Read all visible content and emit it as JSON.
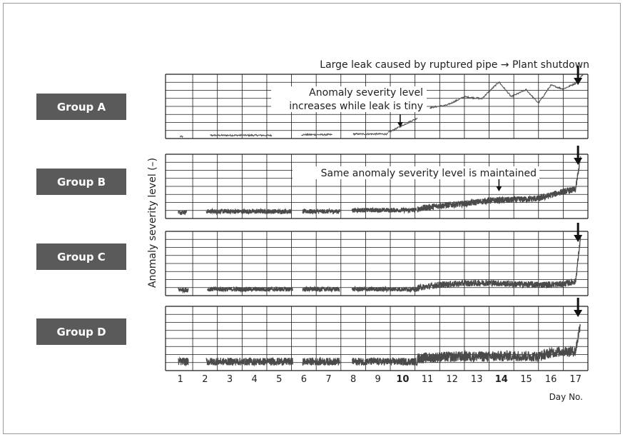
{
  "chart_data": {
    "type": "line",
    "ylabel": "Anomaly severity level (–)",
    "xlabel": "Day No.",
    "x_ticks": [
      "1",
      "2",
      "3",
      "4",
      "5",
      "6",
      "7",
      "8",
      "9",
      "10",
      "11",
      "12",
      "13",
      "14",
      "15",
      "16",
      "17"
    ],
    "bold_ticks": [
      "10",
      "14"
    ],
    "xlim": [
      0.4,
      17.5
    ],
    "ylim": [
      0,
      10
    ],
    "grid": true,
    "panels": [
      {
        "name": "Group A",
        "segments": [
          {
            "start": 0.98,
            "end": 1.1,
            "level": [
              0.3,
              0.3
            ]
          },
          {
            "start": 2.2,
            "end": 4.7,
            "level": [
              0.5,
              0.5
            ]
          },
          {
            "start": 5.9,
            "end": 7.15,
            "level": [
              0.6,
              0.6
            ]
          },
          {
            "start": 8.0,
            "end": 9.4,
            "level": [
              0.7,
              0.7
            ]
          },
          {
            "start": 9.4,
            "end": 10.6,
            "level": [
              0.9,
              3.2
            ]
          },
          {
            "start": 11.1,
            "end": 17.3,
            "profile": [
              [
                11.1,
                4.8
              ],
              [
                11.8,
                5.2
              ],
              [
                12.5,
                6.5
              ],
              [
                13.2,
                6.2
              ],
              [
                13.9,
                8.8
              ],
              [
                14.4,
                6.5
              ],
              [
                15.0,
                7.6
              ],
              [
                15.5,
                5.5
              ],
              [
                16.0,
                8.3
              ],
              [
                16.5,
                7.7
              ],
              [
                17.0,
                8.6
              ],
              [
                17.3,
                10.0
              ]
            ]
          }
        ],
        "noise": 0.12,
        "arrows": [
          9.9,
          17.1
        ]
      },
      {
        "name": "Group B",
        "segments": [
          {
            "start": 0.92,
            "end": 1.25,
            "level": [
              1.0,
              1.0
            ]
          },
          {
            "start": 2.05,
            "end": 5.5,
            "level": [
              1.1,
              1.1
            ]
          },
          {
            "start": 5.95,
            "end": 7.45,
            "level": [
              1.1,
              1.1
            ]
          },
          {
            "start": 7.95,
            "end": 10.55,
            "level": [
              1.3,
              1.3
            ]
          },
          {
            "start": 10.6,
            "end": 17.2,
            "profile": [
              [
                10.6,
                1.5
              ],
              [
                11.5,
                2.0
              ],
              [
                12.5,
                2.3
              ],
              [
                13.5,
                2.8
              ],
              [
                14.5,
                2.9
              ],
              [
                15.5,
                3.1
              ],
              [
                16.5,
                4.2
              ],
              [
                17.0,
                4.5
              ],
              [
                17.2,
                9.5
              ]
            ]
          }
        ],
        "noise": 0.45,
        "arrows": [
          13.9,
          17.1
        ]
      },
      {
        "name": "Group C",
        "segments": [
          {
            "start": 0.92,
            "end": 1.32,
            "level": [
              0.9,
              0.9
            ]
          },
          {
            "start": 2.1,
            "end": 5.55,
            "level": [
              1.0,
              1.0
            ]
          },
          {
            "start": 5.95,
            "end": 7.45,
            "level": [
              1.0,
              1.0
            ]
          },
          {
            "start": 7.95,
            "end": 10.6,
            "level": [
              1.0,
              1.0
            ]
          },
          {
            "start": 10.6,
            "end": 17.2,
            "profile": [
              [
                10.6,
                1.2
              ],
              [
                11.5,
                1.7
              ],
              [
                12.5,
                1.9
              ],
              [
                13.5,
                2.0
              ],
              [
                14.5,
                1.8
              ],
              [
                15.5,
                1.7
              ],
              [
                16.5,
                1.8
              ],
              [
                17.0,
                2.2
              ],
              [
                17.2,
                9.0
              ]
            ]
          }
        ],
        "noise": 0.45,
        "arrows": [
          17.1
        ]
      },
      {
        "name": "Group D",
        "segments": [
          {
            "start": 0.92,
            "end": 1.32,
            "level": [
              1.4,
              1.4
            ]
          },
          {
            "start": 2.05,
            "end": 5.55,
            "level": [
              1.4,
              1.4
            ]
          },
          {
            "start": 5.95,
            "end": 7.45,
            "level": [
              1.4,
              1.4
            ]
          },
          {
            "start": 7.95,
            "end": 10.6,
            "level": [
              1.4,
              1.4
            ]
          },
          {
            "start": 10.6,
            "end": 17.2,
            "profile": [
              [
                10.6,
                1.9
              ],
              [
                11.5,
                2.1
              ],
              [
                12.5,
                2.2
              ],
              [
                13.5,
                2.2
              ],
              [
                14.5,
                2.3
              ],
              [
                15.5,
                2.2
              ],
              [
                16.0,
                2.8
              ],
              [
                16.5,
                3.0
              ],
              [
                17.0,
                3.0
              ],
              [
                17.2,
                7.5
              ]
            ]
          }
        ],
        "noise": 0.75,
        "arrows": [
          17.1
        ]
      }
    ]
  },
  "annotations": {
    "shutdown": "Large leak caused by ruptured pipe → Plant shutdown",
    "tiny_leak_line1": "Anomaly severity level",
    "tiny_leak_line2": "increases while leak is tiny",
    "maintained": "Same anomaly severity level is maintained"
  },
  "colors": {
    "label_bg": "#5a5a5a",
    "series": "#4a4a4a",
    "series_a": "#555555",
    "grid": "#1a1a1a"
  }
}
